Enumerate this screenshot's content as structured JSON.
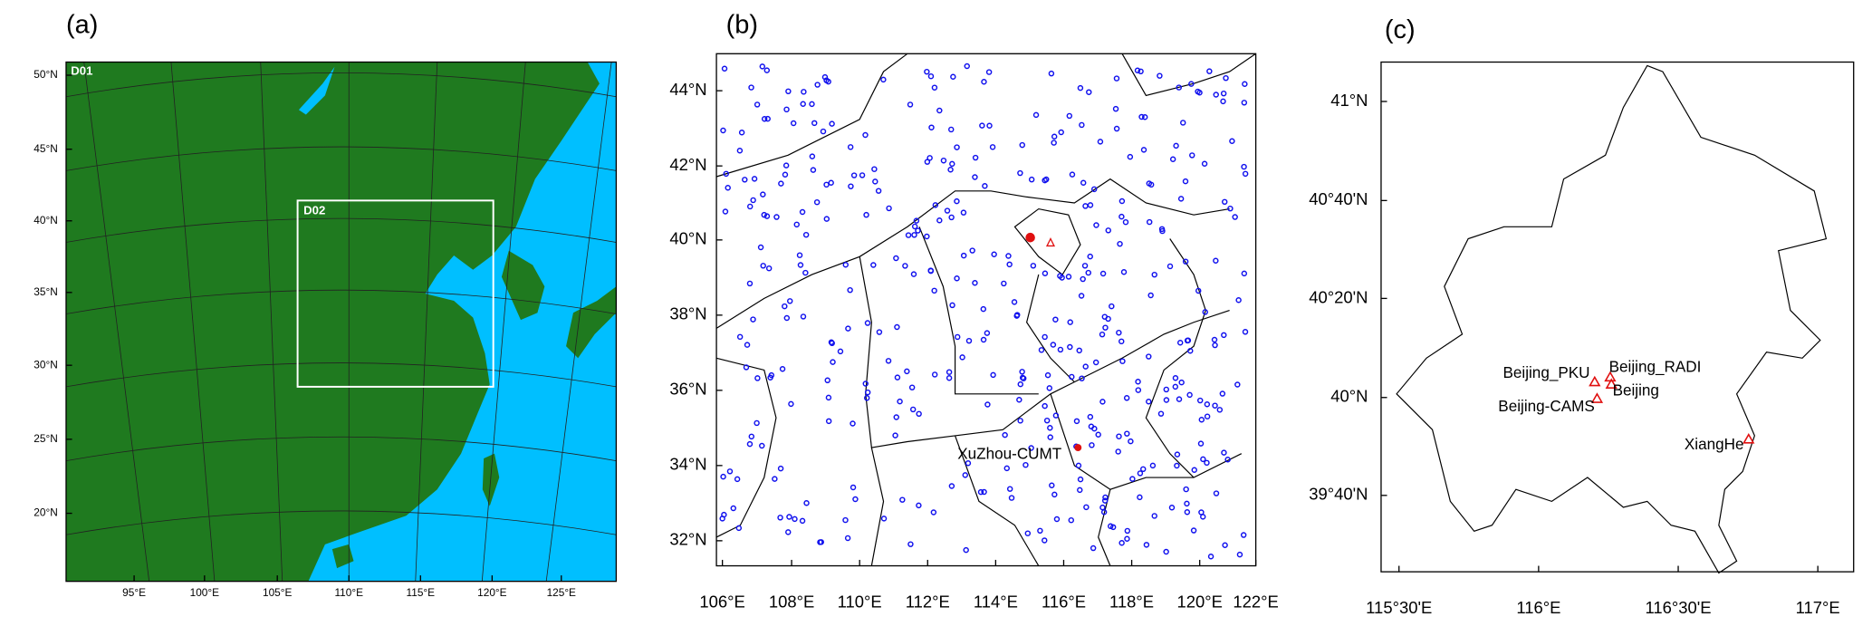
{
  "panels": [
    {
      "label": "(a)",
      "domains": [
        "D01",
        "D02"
      ],
      "yticks": [
        "50°N",
        "45°N",
        "40°N",
        "35°N",
        "30°N",
        "25°N",
        "20°N"
      ],
      "xticks": [
        "95°E",
        "100°E",
        "105°E",
        "110°E",
        "115°E",
        "120°E",
        "125°E"
      ]
    },
    {
      "label": "(b)",
      "stations": [
        "XuZhou-CUMT"
      ],
      "yticks": [
        "44°N",
        "42°N",
        "40°N",
        "38°N",
        "36°N",
        "34°N",
        "32°N"
      ],
      "xticks": [
        "106°E",
        "108°E",
        "110°E",
        "112°E",
        "114°E",
        "116°E",
        "118°E",
        "120°E",
        "122°E"
      ]
    },
    {
      "label": "(c)",
      "stations": [
        "Beijing_PKU",
        "Beijing_RADI",
        "Beijing",
        "Beijing-CAMS",
        "XiangHe"
      ],
      "yticks": [
        "41°N",
        "40°40'N",
        "40°20'N",
        "40°N",
        "39°40'N"
      ],
      "xticks": [
        "115°30'E",
        "116°E",
        "116°30'E",
        "117°E"
      ]
    }
  ]
}
